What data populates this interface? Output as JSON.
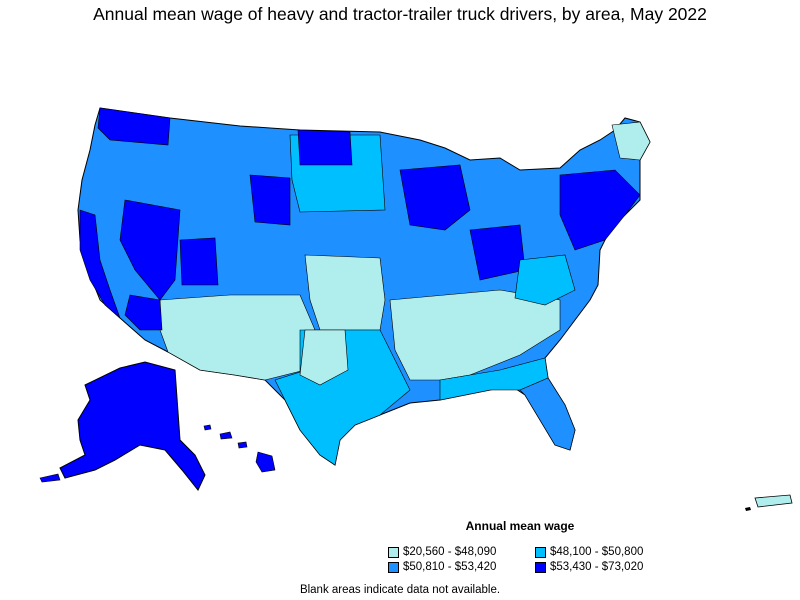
{
  "title": "Annual mean wage of heavy and tractor-trailer truck drivers, by area, May 2022",
  "legend": {
    "title": "Annual mean wage",
    "items": [
      {
        "label": "$20,560 - $48,090",
        "color": "#b0eeee"
      },
      {
        "label": "$48,100 - $50,800",
        "color": "#00bfff"
      },
      {
        "label": "$50,810 - $53,420",
        "color": "#1e90ff"
      },
      {
        "label": "$53,430 - $73,020",
        "color": "#0000ff"
      }
    ]
  },
  "note": "Blank areas indicate data not available.",
  "colors": {
    "border": "#000000",
    "low": "#b0eeee",
    "mid_low": "#00bfff",
    "mid_high": "#1e90ff",
    "high": "#0000ff"
  }
}
